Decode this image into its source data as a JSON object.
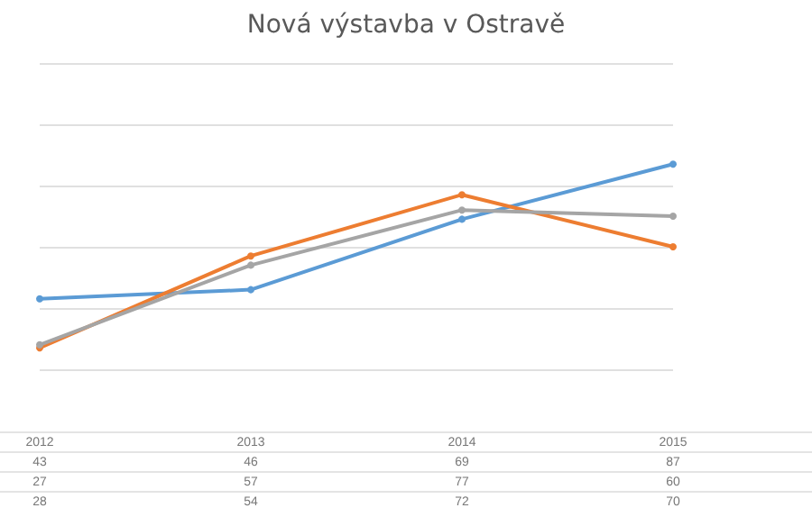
{
  "chart_data": {
    "type": "line",
    "title": "Nová výstavba v Ostravě",
    "categories": [
      "2012",
      "2013",
      "2014",
      "2015"
    ],
    "series": [
      {
        "color": "#5b9bd5",
        "values": [
          43,
          46,
          69,
          87
        ]
      },
      {
        "color": "#ed7d31",
        "values": [
          27,
          57,
          77,
          60
        ]
      },
      {
        "color": "#a5a5a5",
        "values": [
          28,
          54,
          72,
          70
        ]
      }
    ],
    "ylim": [
      20,
      120
    ],
    "yticks": [
      20,
      40,
      60,
      80,
      100,
      120
    ],
    "tick_labels": false,
    "grid": "y",
    "marker": "circle",
    "line_style": "solid",
    "data_labels": true
  }
}
